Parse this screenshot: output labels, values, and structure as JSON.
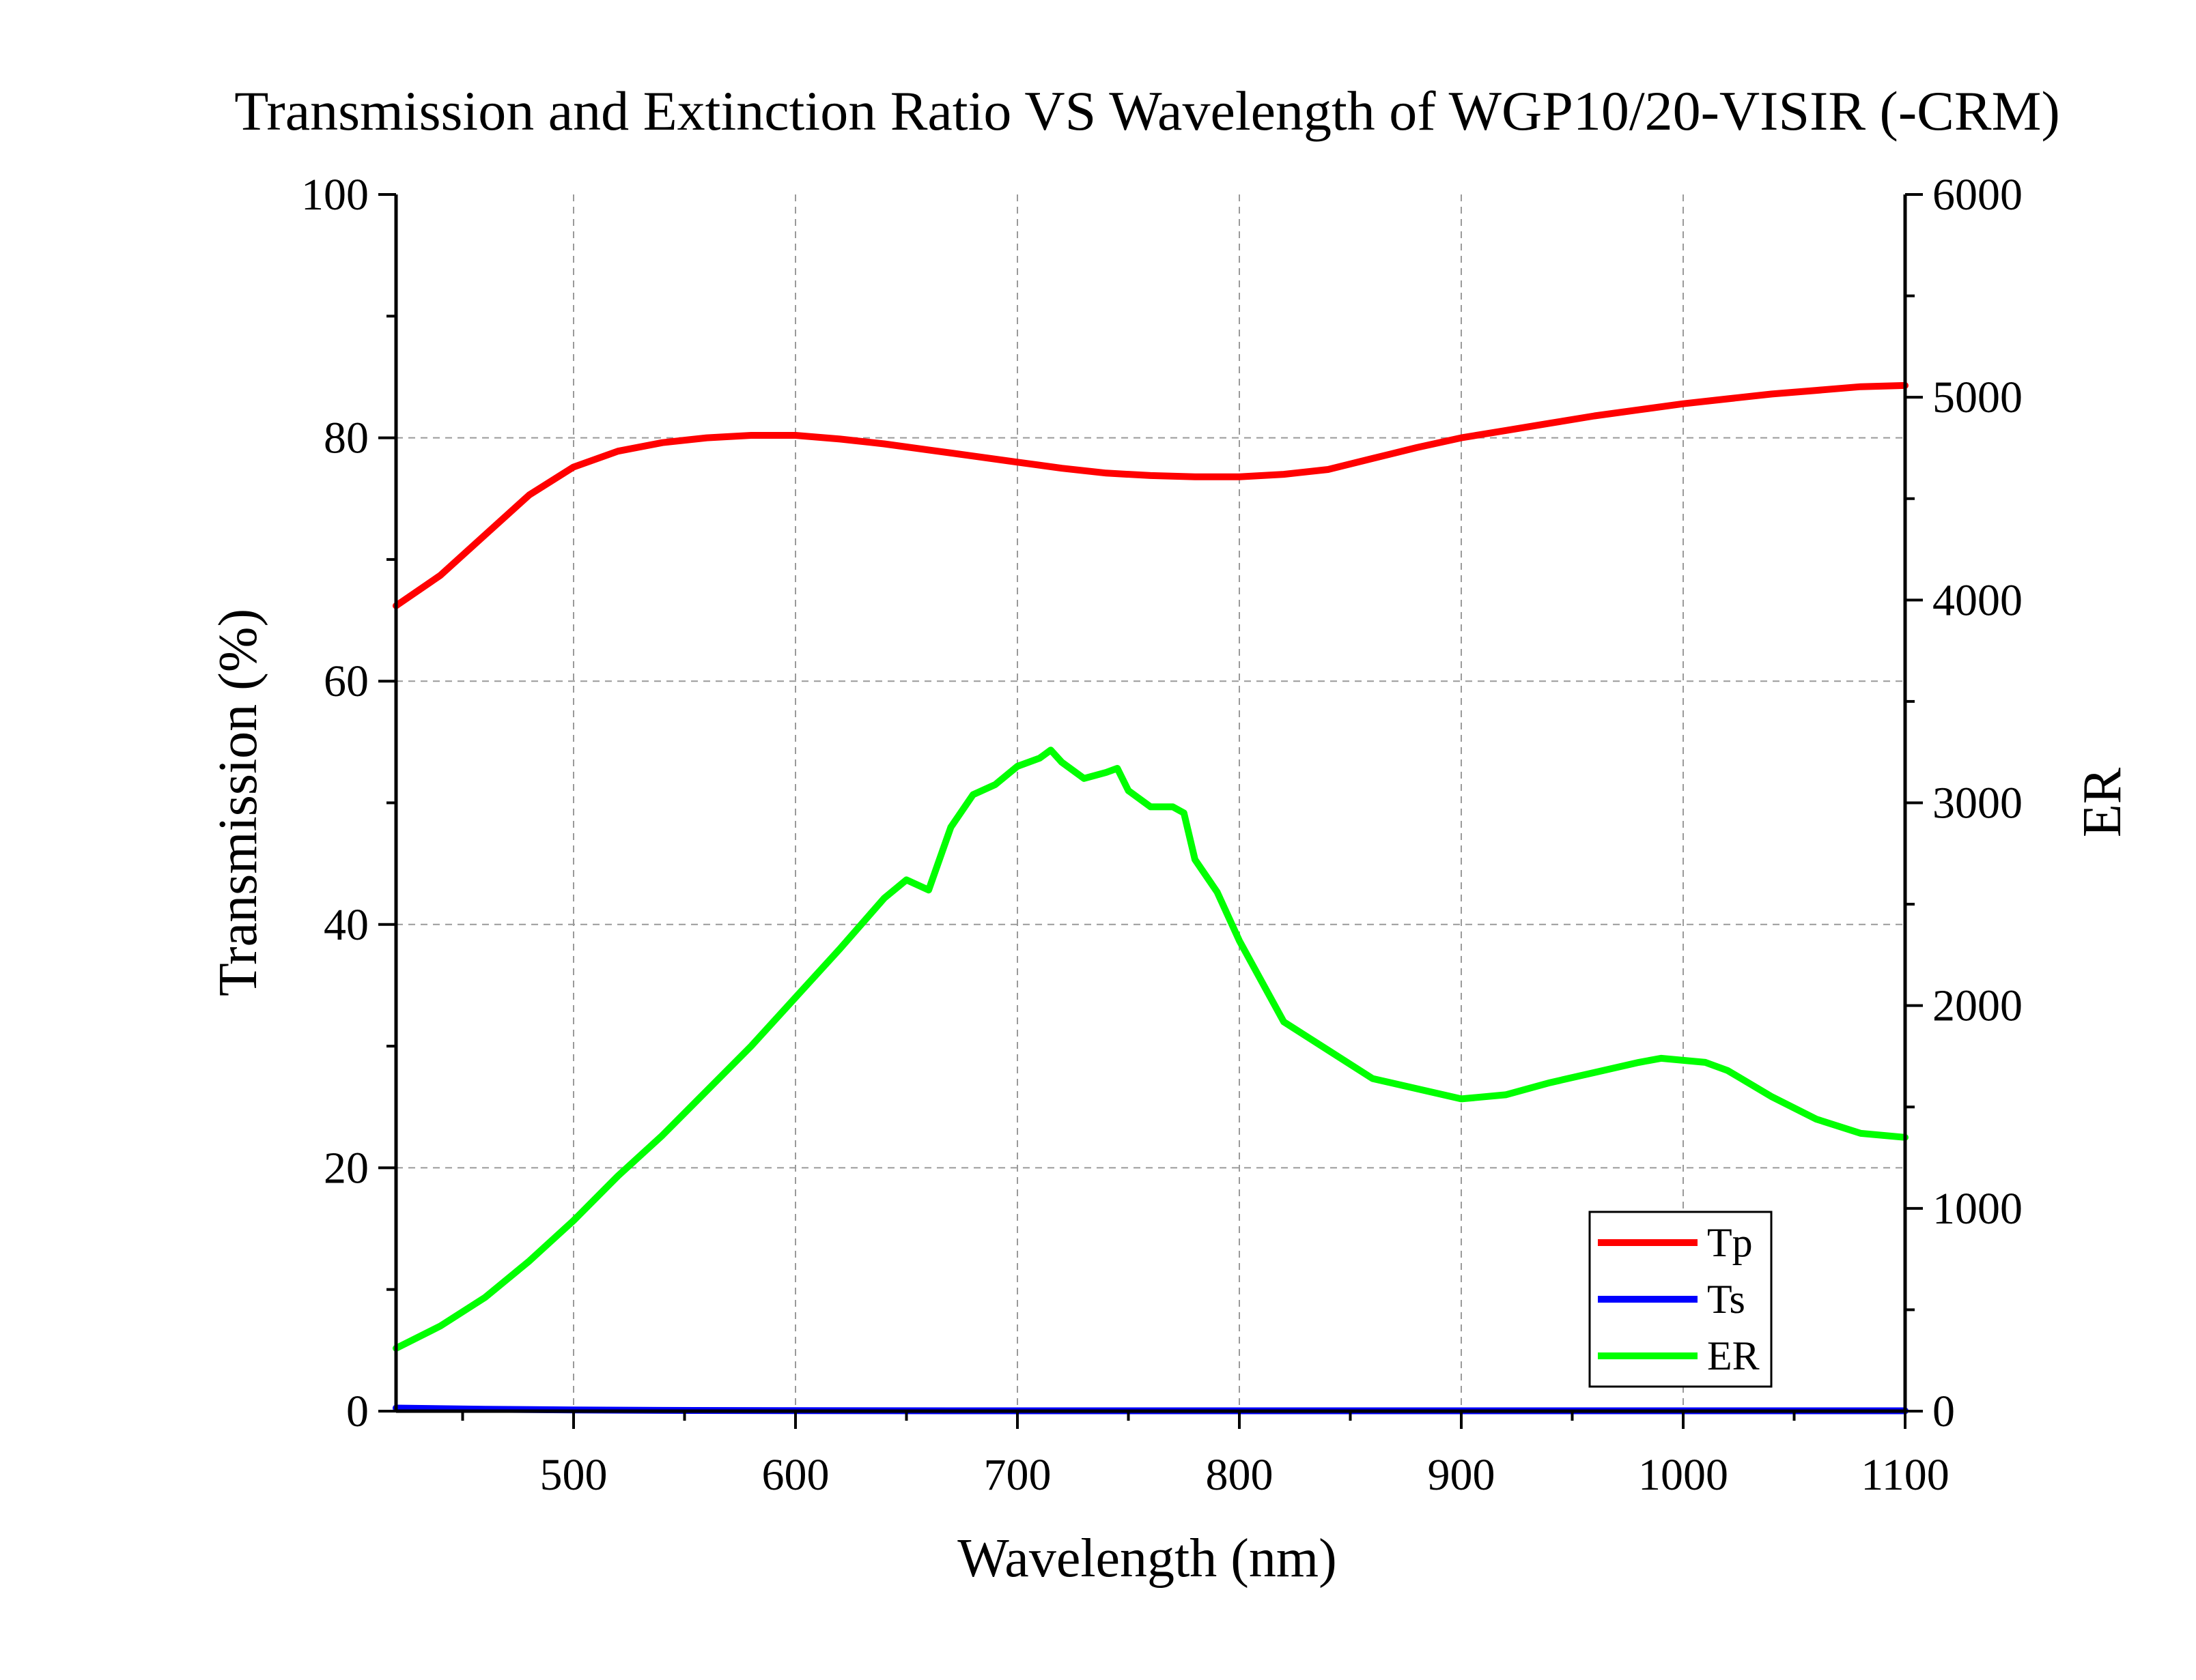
{
  "chart_data": {
    "type": "line",
    "title": "Transmission and Extinction Ratio VS Wavelength of WGP10/20-VISIR (-CRM)",
    "xlabel": "Wavelength (nm)",
    "ylabel": "Transmission (%)",
    "y2label": "ER",
    "xlim": [
      420,
      1100
    ],
    "ylim": [
      0,
      100
    ],
    "y2lim": [
      0,
      6000
    ],
    "x_ticks": [
      500,
      600,
      700,
      800,
      900,
      1000,
      1100
    ],
    "y_ticks": [
      0,
      20,
      40,
      60,
      80,
      100
    ],
    "y2_ticks": [
      0,
      1000,
      2000,
      3000,
      4000,
      5000,
      6000
    ],
    "grid": true,
    "legend_position": "bottom-right",
    "series": [
      {
        "name": "Tp",
        "axis": "left",
        "color": "#ff0000",
        "x": [
          420,
          440,
          460,
          480,
          500,
          520,
          540,
          560,
          580,
          600,
          620,
          640,
          660,
          680,
          700,
          720,
          740,
          760,
          780,
          800,
          820,
          840,
          860,
          880,
          900,
          920,
          940,
          960,
          980,
          1000,
          1020,
          1040,
          1060,
          1080,
          1100
        ],
        "y": [
          66.2,
          68.7,
          72.0,
          75.3,
          77.6,
          78.9,
          79.6,
          80.0,
          80.2,
          80.2,
          79.9,
          79.5,
          79.0,
          78.5,
          78.0,
          77.5,
          77.1,
          76.9,
          76.8,
          76.8,
          77.0,
          77.4,
          78.3,
          79.2,
          80.0,
          80.6,
          81.2,
          81.8,
          82.3,
          82.8,
          83.2,
          83.6,
          83.9,
          84.2,
          84.3
        ]
      },
      {
        "name": "Ts",
        "axis": "left",
        "color": "#0000ff",
        "x": [
          420,
          460,
          500,
          540,
          600,
          700,
          800,
          900,
          1000,
          1100
        ],
        "y": [
          0.25,
          0.15,
          0.1,
          0.06,
          0.04,
          0.03,
          0.03,
          0.03,
          0.03,
          0.03
        ]
      },
      {
        "name": "ER",
        "axis": "right",
        "color": "#00ff00",
        "x": [
          420,
          440,
          460,
          480,
          500,
          520,
          540,
          560,
          580,
          600,
          620,
          640,
          650,
          660,
          670,
          680,
          690,
          700,
          710,
          715,
          720,
          730,
          740,
          745,
          750,
          760,
          770,
          775,
          780,
          790,
          800,
          820,
          840,
          860,
          880,
          900,
          920,
          940,
          960,
          980,
          990,
          1000,
          1010,
          1020,
          1040,
          1060,
          1080,
          1100
        ],
        "y": [
          310,
          420,
          560,
          740,
          940,
          1160,
          1360,
          1580,
          1800,
          2040,
          2280,
          2530,
          2620,
          2570,
          2880,
          3040,
          3090,
          3180,
          3220,
          3260,
          3200,
          3120,
          3150,
          3170,
          3060,
          2980,
          2980,
          2950,
          2720,
          2560,
          2320,
          1920,
          1780,
          1640,
          1590,
          1540,
          1560,
          1620,
          1670,
          1720,
          1740,
          1730,
          1720,
          1680,
          1550,
          1440,
          1370,
          1350
        ]
      }
    ]
  }
}
